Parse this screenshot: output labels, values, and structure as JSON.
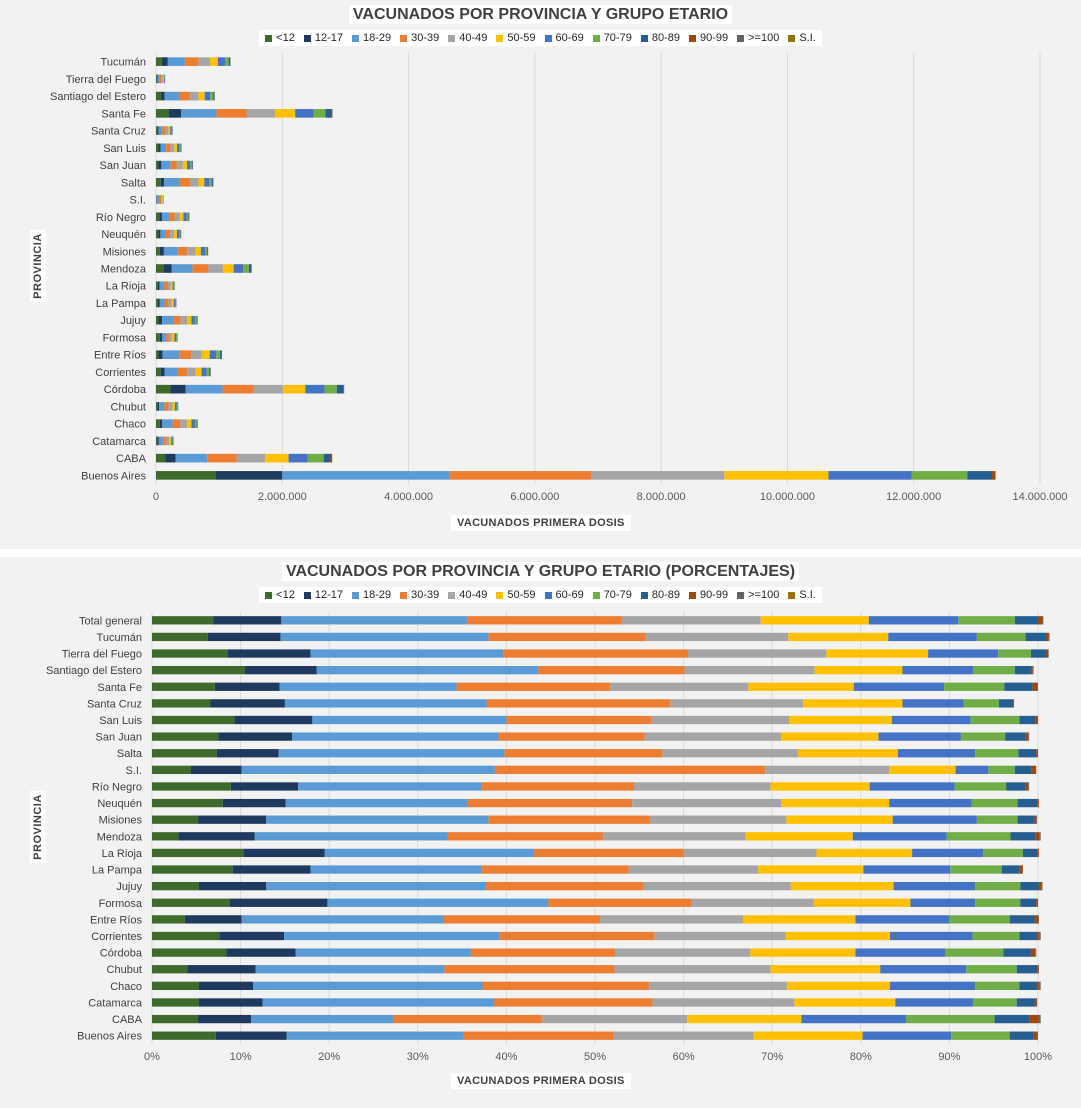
{
  "chart_data": [
    {
      "type": "bar",
      "orientation": "horizontal",
      "stacked": true,
      "title": "VACUNADOS POR PROVINCIA Y GRUPO ETARIO",
      "xlabel": "VACUNADOS PRIMERA  DOSIS",
      "ylabel": "PROVINCIA",
      "xlim": [
        0,
        14000000
      ],
      "xticks": [
        "0",
        "2.000.000",
        "4.000.000",
        "6.000.000",
        "8.000.000",
        "10.000.000",
        "12.000.000",
        "14.000.000"
      ],
      "grid": true,
      "legend_position": "top",
      "categories": [
        "Tucumán",
        "Tierra del Fuego",
        "Santiago del Estero",
        "Santa Fe",
        "Santa Cruz",
        "San Luis",
        "San Juan",
        "Salta",
        "S.I.",
        "Río Negro",
        "Neuquén",
        "Misiones",
        "Mendoza",
        "La Rioja",
        "La Pampa",
        "Jujuy",
        "Formosa",
        "Entre Ríos",
        "Corrientes",
        "Córdoba",
        "Chubut",
        "Chaco",
        "Catamarca",
        "CABA",
        "Buenos Aires"
      ],
      "series": [
        {
          "name": "<12",
          "values": [
            92000,
            14000,
            87000,
            200000,
            25000,
            40000,
            40000,
            75000,
            5000,
            52000,
            40000,
            60000,
            120000,
            30000,
            30000,
            40000,
            60000,
            40000,
            75000,
            230000,
            20000,
            60000,
            20000,
            150000,
            950000
          ]
        },
        {
          "name": "12-17",
          "values": [
            95000,
            9000,
            50000,
            200000,
            17000,
            33000,
            45000,
            53000,
            6000,
            42000,
            30000,
            65000,
            130000,
            25000,
            30000,
            56000,
            40000,
            65000,
            60000,
            240000,
            30000,
            40000,
            25000,
            160000,
            1050000
          ]
        },
        {
          "name": "18-29",
          "values": [
            270000,
            35000,
            235000,
            560000,
            57000,
            88000,
            150000,
            250000,
            35000,
            115000,
            80000,
            220000,
            330000,
            70000,
            75000,
            180000,
            60000,
            265000,
            205000,
            585000,
            80000,
            165000,
            70000,
            500000,
            2650000
          ]
        },
        {
          "name": "30-39",
          "values": [
            215000,
            32000,
            160000,
            480000,
            57000,
            68000,
            95000,
            160000,
            38000,
            88000,
            72000,
            150000,
            250000,
            65000,
            65000,
            115000,
            47000,
            195000,
            155000,
            490000,
            70000,
            120000,
            50000,
            470000,
            2250000
          ]
        },
        {
          "name": "40-49",
          "values": [
            185000,
            19000,
            140000,
            445000,
            40000,
            60000,
            95000,
            135000,
            17000,
            80000,
            65000,
            130000,
            230000,
            45000,
            50000,
            100000,
            45000,
            160000,
            135000,
            465000,
            60000,
            105000,
            45000,
            450000,
            2100000
          ]
        },
        {
          "name": "50-59",
          "values": [
            125000,
            16000,
            100000,
            320000,
            28000,
            45000,
            67000,
            92000,
            10000,
            58000,
            45000,
            85000,
            170000,
            28000,
            32000,
            70000,
            40000,
            125000,
            92000,
            355000,
            40000,
            72000,
            30000,
            370000,
            1650000
          ]
        },
        {
          "name": "60-69",
          "values": [
            110000,
            11000,
            85000,
            290000,
            21000,
            37000,
            52000,
            80000,
            5000,
            50000,
            37000,
            68000,
            150000,
            20000,
            25000,
            55000,
            26000,
            105000,
            80000,
            305000,
            30000,
            55000,
            22000,
            300000,
            1320000
          ]
        },
        {
          "name": "70-79",
          "values": [
            60000,
            5000,
            50000,
            190000,
            13000,
            22000,
            28000,
            43000,
            3000,
            30000,
            20000,
            33000,
            90000,
            9000,
            10000,
            30000,
            15000,
            60000,
            45000,
            195000,
            15000,
            28000,
            12000,
            255000,
            880000
          ]
        },
        {
          "name": "80-89",
          "values": [
            25000,
            3000,
            20000,
            95000,
            6000,
            10000,
            12000,
            19000,
            2000,
            12000,
            9000,
            14000,
            40000,
            4000,
            5000,
            12000,
            7000,
            27000,
            17000,
            100000,
            6000,
            13000,
            5000,
            110000,
            390000
          ]
        },
        {
          "name": "90-99",
          "values": [
            3000,
            500,
            2000,
            14000,
            500,
            1000,
            1200,
            2000,
            500,
            1500,
            1000,
            1300,
            6000,
            500,
            1000,
            1400,
            800,
            4000,
            2000,
            15000,
            800,
            1600,
            600,
            25000,
            55000
          ]
        },
        {
          "name": ">=100",
          "values": [
            100,
            0,
            100,
            300,
            0,
            0,
            100,
            100,
            0,
            100,
            0,
            100,
            200,
            0,
            0,
            100,
            0,
            100,
            100,
            300,
            0,
            100,
            0,
            500,
            1200
          ]
        },
        {
          "name": "S.I.",
          "values": [
            0,
            0,
            0,
            0,
            0,
            0,
            0,
            0,
            0,
            0,
            0,
            0,
            0,
            0,
            0,
            0,
            0,
            0,
            0,
            0,
            0,
            0,
            0,
            0,
            0
          ]
        }
      ]
    },
    {
      "type": "bar",
      "orientation": "horizontal",
      "stacked": true,
      "normalized": true,
      "title": "VACUNADOS POR PROVINCIA Y GRUPO ETARIO (PORCENTAJES)",
      "xlabel": "VACUNADOS PRIMERA  DOSIS",
      "ylabel": "PROVINCIA",
      "xlim": [
        0,
        100
      ],
      "xticks": [
        "0%",
        "10%",
        "20%",
        "30%",
        "40%",
        "50%",
        "60%",
        "70%",
        "80%",
        "90%",
        "100%"
      ],
      "grid": true,
      "legend_position": "top",
      "categories": [
        "Total general",
        "Tucumán",
        "Tierra del Fuego",
        "Santiago del Estero",
        "Santa Fe",
        "Santa Cruz",
        "San Luis",
        "San Juan",
        "Salta",
        "S.I.",
        "Río Negro",
        "Neuquén",
        "Misiones",
        "Mendoza",
        "La Rioja",
        "La Pampa",
        "Jujuy",
        "Formosa",
        "Entre Ríos",
        "Corrientes",
        "Córdoba",
        "Chubut",
        "Chaco",
        "Catamarca",
        "CABA",
        "Buenos Aires"
      ],
      "series": [
        {
          "name": "<12",
          "values": [
            6.9,
            6.3,
            8.5,
            10.5,
            7.1,
            6.6,
            9.3,
            7.5,
            7.3,
            4.4,
            8.9,
            8.0,
            5.2,
            3.0,
            10.3,
            9.1,
            5.3,
            8.8,
            3.7,
            7.6,
            8.4,
            4.0,
            5.3,
            5.3,
            5.2,
            7.2
          ]
        },
        {
          "name": "12-17",
          "values": [
            7.7,
            8.2,
            9.4,
            8.1,
            7.3,
            8.4,
            8.8,
            8.3,
            7.0,
            5.7,
            7.6,
            7.1,
            7.7,
            8.6,
            9.2,
            8.8,
            7.6,
            11.0,
            6.4,
            7.3,
            7.8,
            7.7,
            6.1,
            7.2,
            6.0,
            8.0
          ]
        },
        {
          "name": "18-29",
          "values": [
            21.0,
            23.5,
            21.8,
            25.0,
            20.0,
            22.8,
            21.9,
            23.3,
            25.5,
            28.6,
            20.7,
            20.5,
            25.1,
            21.8,
            23.6,
            19.3,
            24.8,
            24.9,
            22.8,
            24.3,
            19.8,
            21.3,
            25.9,
            26.1,
            16.0,
            20.0
          ]
        },
        {
          "name": "30-39",
          "values": [
            17.4,
            17.7,
            20.8,
            16.5,
            17.3,
            20.7,
            16.4,
            16.5,
            17.8,
            30.5,
            17.2,
            18.6,
            18.2,
            17.5,
            16.9,
            16.6,
            17.8,
            16.2,
            17.7,
            17.5,
            16.3,
            19.2,
            18.8,
            17.9,
            16.8,
            16.9
          ]
        },
        {
          "name": "40-49",
          "values": [
            15.7,
            16.1,
            15.6,
            14.7,
            15.6,
            15.0,
            15.5,
            15.4,
            15.3,
            14.0,
            15.4,
            16.8,
            15.4,
            16.1,
            15.0,
            14.6,
            16.6,
            13.8,
            16.1,
            14.8,
            15.2,
            17.6,
            15.6,
            16.0,
            16.4,
            15.8
          ]
        },
        {
          "name": "50-59",
          "values": [
            12.2,
            11.3,
            11.5,
            9.9,
            11.9,
            11.2,
            11.6,
            11.0,
            11.3,
            7.5,
            11.2,
            12.2,
            12.0,
            12.1,
            10.8,
            11.9,
            11.6,
            10.9,
            12.7,
            11.8,
            11.9,
            12.4,
            11.6,
            11.4,
            12.9,
            12.3
          ]
        },
        {
          "name": "60-69",
          "values": [
            10.1,
            10.0,
            7.9,
            8.0,
            10.2,
            6.9,
            8.9,
            9.3,
            8.7,
            3.7,
            9.6,
            9.3,
            9.5,
            10.6,
            8.0,
            9.8,
            9.2,
            7.3,
            10.6,
            9.3,
            10.1,
            9.7,
            9.6,
            8.8,
            11.8,
            10.0
          ]
        },
        {
          "name": "70-79",
          "values": [
            6.4,
            5.5,
            3.7,
            4.7,
            6.8,
            4.0,
            5.5,
            5.0,
            4.9,
            3.0,
            5.8,
            5.2,
            4.6,
            7.2,
            4.5,
            5.8,
            5.1,
            5.1,
            6.8,
            5.3,
            6.6,
            5.7,
            5.0,
            4.9,
            10.0,
            6.6
          ]
        },
        {
          "name": "80-89",
          "values": [
            2.6,
            2.3,
            1.7,
            1.8,
            3.2,
            1.6,
            1.8,
            2.3,
            2.0,
            1.9,
            2.2,
            2.2,
            1.9,
            2.8,
            1.6,
            2.0,
            2.1,
            1.8,
            2.8,
            2.0,
            3.1,
            2.3,
            2.0,
            2.1,
            3.9,
            2.7
          ]
        },
        {
          "name": "90-99",
          "values": [
            0.5,
            0.3,
            0.3,
            0.2,
            0.5,
            0.1,
            0.3,
            0.3,
            0.2,
            0.5,
            0.3,
            0.2,
            0.2,
            0.5,
            0.2,
            0.4,
            0.3,
            0.2,
            0.4,
            0.3,
            0.5,
            0.2,
            0.3,
            0.2,
            1.1,
            0.4
          ]
        },
        {
          "name": ">=100",
          "values": [
            0.1,
            0.1,
            0.0,
            0.1,
            0.1,
            0.0,
            0.0,
            0.1,
            0.0,
            0.0,
            0.1,
            0.0,
            0.1,
            0.1,
            0.0,
            0.0,
            0.1,
            0.0,
            0.1,
            0.1,
            0.1,
            0.0,
            0.1,
            0.0,
            0.2,
            0.1
          ]
        },
        {
          "name": "S.I.",
          "values": [
            0.0,
            0.0,
            0.0,
            0.0,
            0.0,
            0.0,
            0.0,
            0.0,
            0.0,
            0.0,
            0.0,
            0.0,
            0.0,
            0.0,
            0.0,
            0.0,
            0.0,
            0.0,
            0.0,
            0.0,
            0.0,
            0.0,
            0.0,
            0.0,
            0.0,
            0.0
          ]
        }
      ]
    }
  ],
  "colors": {
    "<12": "#3e6b2c",
    "12-17": "#1f3a5f",
    "18-29": "#5b9bd5",
    "30-39": "#ed7d31",
    "40-49": "#a5a5a5",
    "50-59": "#ffc000",
    "60-69": "#4472c4",
    "70-79": "#70ad47",
    "80-89": "#255e91",
    "90-99": "#9e480e",
    ">=100": "#636363",
    "S.I.": "#997300"
  }
}
